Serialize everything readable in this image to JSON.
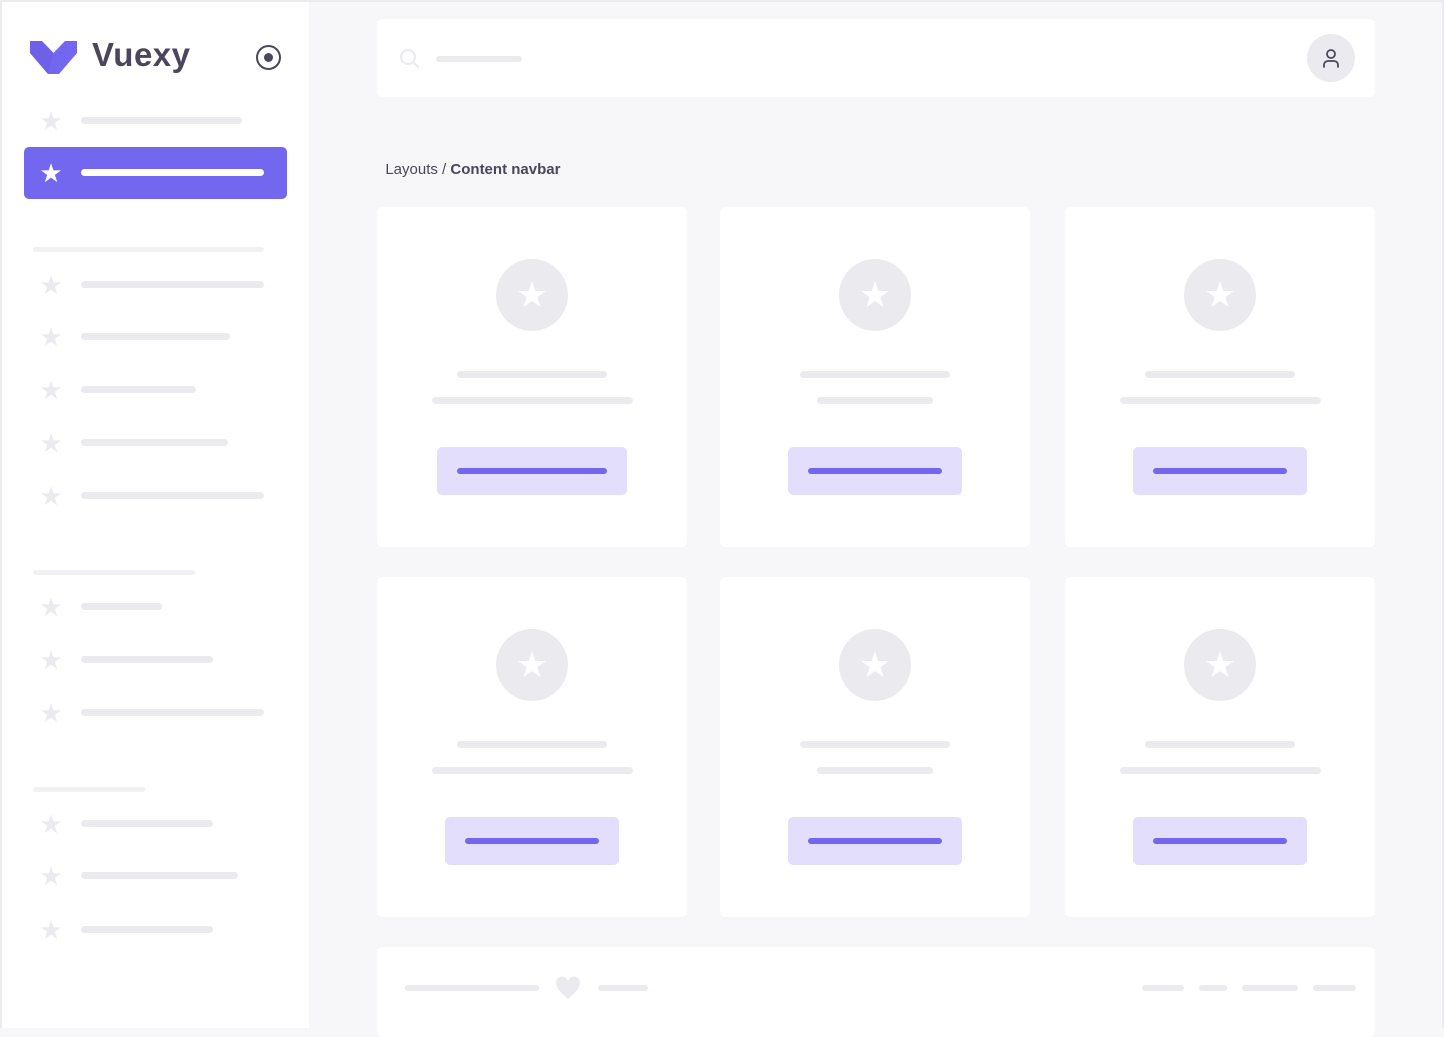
{
  "brand": {
    "name": "Vuexy",
    "color": "#7367f0"
  },
  "sidebar": {
    "toggle_icon": "radio-circle-icon",
    "active_index": 1
  },
  "header": {
    "search_icon": "search-icon",
    "user_icon": "user-icon"
  },
  "breadcrumb": {
    "parent": "Layouts",
    "separator": " / ",
    "current": "Content navbar"
  },
  "footer": {
    "heart_icon": "heart-icon"
  },
  "colors": {
    "accent": "#7367f0",
    "accent_light": "#e3defb",
    "placeholder": "#ebebef",
    "background": "#f7f7f9"
  }
}
